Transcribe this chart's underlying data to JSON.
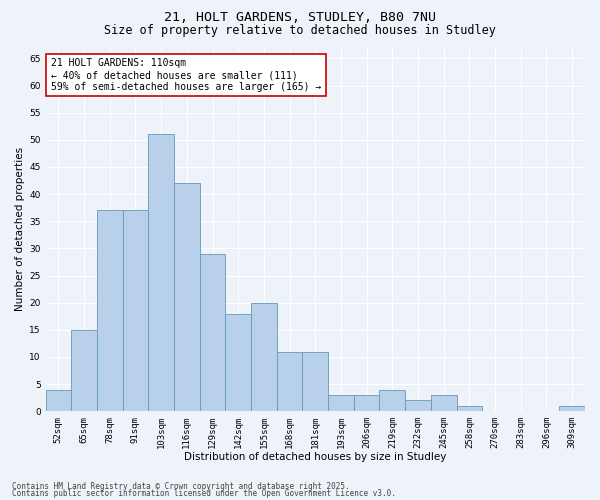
{
  "title1": "21, HOLT GARDENS, STUDLEY, B80 7NU",
  "title2": "Size of property relative to detached houses in Studley",
  "xlabel": "Distribution of detached houses by size in Studley",
  "ylabel": "Number of detached properties",
  "categories": [
    "52sqm",
    "65sqm",
    "78sqm",
    "91sqm",
    "103sqm",
    "116sqm",
    "129sqm",
    "142sqm",
    "155sqm",
    "168sqm",
    "181sqm",
    "193sqm",
    "206sqm",
    "219sqm",
    "232sqm",
    "245sqm",
    "258sqm",
    "270sqm",
    "283sqm",
    "296sqm",
    "309sqm"
  ],
  "values": [
    4,
    15,
    37,
    37,
    51,
    42,
    29,
    18,
    20,
    11,
    11,
    3,
    3,
    4,
    2,
    3,
    1,
    0,
    0,
    0,
    1
  ],
  "bar_color": "#b8d0ea",
  "bar_edge_color": "#6699bb",
  "annotation_text": "21 HOLT GARDENS: 110sqm\n← 40% of detached houses are smaller (111)\n59% of semi-detached houses are larger (165) →",
  "annotation_box_color": "#ffffff",
  "annotation_box_edge_color": "#cc0000",
  "ylim": [
    0,
    67
  ],
  "yticks": [
    0,
    5,
    10,
    15,
    20,
    25,
    30,
    35,
    40,
    45,
    50,
    55,
    60,
    65
  ],
  "bg_color": "#eef2f9",
  "grid_color": "#ffffff",
  "footer1": "Contains HM Land Registry data © Crown copyright and database right 2025.",
  "footer2": "Contains public sector information licensed under the Open Government Licence v3.0.",
  "title_fontsize": 9.5,
  "subtitle_fontsize": 8.5,
  "axis_label_fontsize": 7.5,
  "tick_fontsize": 6.5,
  "annotation_fontsize": 7,
  "footer_fontsize": 5.5
}
